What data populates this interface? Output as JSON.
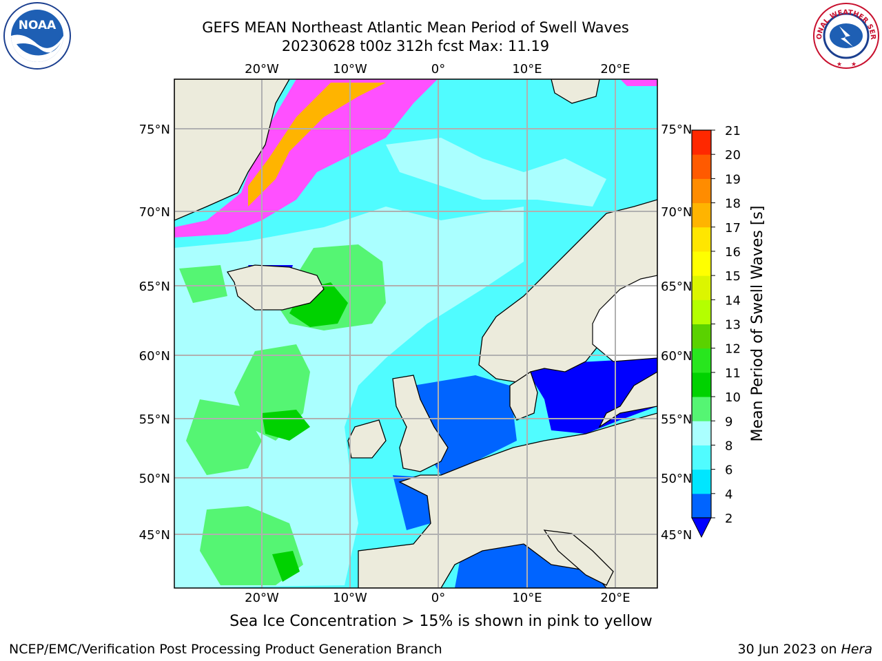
{
  "header": {
    "title_line1": "GEFS MEAN Northeast Atlantic Mean Period of Swell Waves",
    "title_line2": "20230628 t00z 312h fcst   Max: 11.19"
  },
  "logos": {
    "left": {
      "text": "NOAA",
      "icon": "noaa-logo-icon"
    },
    "right": {
      "text": "NATIONAL WEATHER SERVICE",
      "icon": "nws-logo-icon"
    }
  },
  "map": {
    "lon_labels": [
      "20°W",
      "10°W",
      "0°",
      "10°E",
      "20°E"
    ],
    "lat_labels": [
      "75°N",
      "70°N",
      "65°N",
      "60°N",
      "55°N",
      "50°N",
      "45°N"
    ],
    "grid": true,
    "land_color": "#ecebdc",
    "ice_free_color": "#ffffff"
  },
  "colorbar": {
    "label": "Mean Period of Swell Waves [s]",
    "ticks": [
      "2",
      "4",
      "6",
      "8",
      "9",
      "10",
      "11",
      "12",
      "13",
      "14",
      "15",
      "16",
      "17",
      "18",
      "19",
      "20",
      "21"
    ],
    "colors": [
      "#0064ff",
      "#00e6ff",
      "#50fcff",
      "#aaffff",
      "#55f573",
      "#00d200",
      "#28e61e",
      "#5ad200",
      "#b4ff00",
      "#dcf500",
      "#ffff00",
      "#ffe600",
      "#ffb400",
      "#ff8c00",
      "#ff5a00",
      "#ff2800"
    ],
    "extend_color": "#0000ff"
  },
  "notes": {
    "ice": "Sea Ice Concentration > 15% is shown in pink to yellow"
  },
  "footer": {
    "left": "NCEP/EMC/Verification Post Processing Product Generation Branch",
    "date": "30 Jun 2023 on ",
    "host": "Hera"
  }
}
